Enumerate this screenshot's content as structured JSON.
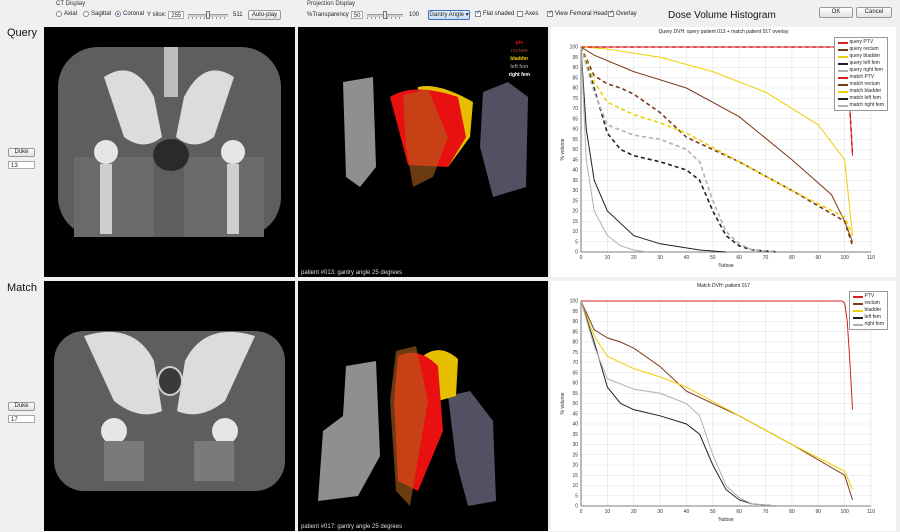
{
  "ct_display": {
    "title": "CT Display",
    "views": [
      "Axial",
      "Sagittal",
      "Coronal"
    ],
    "selected_view": "Coronal",
    "slice_label": "Y slice:",
    "slice_value": "255",
    "slice_max": "511",
    "slice_fraction": 0.5,
    "autoplay_label": "Auto-play"
  },
  "projection_display": {
    "title": "Projection Display",
    "transparency_label": "%Transparency",
    "transparency_value": "50",
    "transparency_max": "100",
    "transparency_fraction": 0.5,
    "gantry_label": "Gantry Angle",
    "flat_shaded_label": "Flat shaded",
    "flat_shaded": true,
    "axes_label": "Axes",
    "axes": false,
    "femoral_label": "View Femoral Heads",
    "femoral": true,
    "overlay_label": "Overlay",
    "overlay": true
  },
  "dvh_title": "Dose Volume Histogram",
  "ok_label": "OK",
  "cancel_label": "Cancel",
  "query": {
    "label": "Query",
    "duke_label": "Duke",
    "patient_number": "13",
    "projection_caption": "patient #013: gantry angle 25 degrees",
    "overlay_legend": [
      {
        "label": "ptv",
        "color": "#e01010"
      },
      {
        "label": "rectum",
        "color": "#7a3a1a"
      },
      {
        "label": "bladder",
        "color": "#f0d000"
      },
      {
        "label": "left fem",
        "color": "#8a8a8a"
      },
      {
        "label": "right fem",
        "color": "#ffffff"
      }
    ]
  },
  "match": {
    "label": "Match",
    "duke_label": "Duke",
    "patient_number": "17",
    "projection_caption": "patient #017: gantry angle 25 degrees"
  },
  "chart_data": [
    {
      "type": "line",
      "title": "Query DVH: query patient 013 + match patient 017 overlay",
      "xlabel": "%dose",
      "ylabel": "% volume",
      "xlim": [
        0,
        110
      ],
      "ylim": [
        0,
        100
      ],
      "xticks": [
        0,
        10,
        20,
        30,
        40,
        50,
        60,
        70,
        80,
        90,
        100,
        110
      ],
      "yticks": [
        0,
        5,
        10,
        15,
        20,
        25,
        30,
        35,
        40,
        45,
        50,
        55,
        60,
        65,
        70,
        75,
        80,
        85,
        90,
        95,
        100
      ],
      "grid": true,
      "legend_position": "top-right",
      "series": [
        {
          "name": "query PTV",
          "color": "#d62020",
          "dashed": false,
          "x": [
            0,
            99,
            100,
            101,
            102,
            103
          ],
          "y": [
            100,
            100,
            99,
            90,
            70,
            47
          ]
        },
        {
          "name": "query rectum",
          "color": "#7a3a1a",
          "dashed": false,
          "x": [
            0,
            5,
            20,
            40,
            60,
            80,
            95,
            100,
            103
          ],
          "y": [
            100,
            96,
            88,
            80,
            66,
            45,
            28,
            15,
            5
          ]
        },
        {
          "name": "query bladder",
          "color": "#f0d000",
          "dashed": false,
          "x": [
            0,
            10,
            30,
            50,
            70,
            90,
            100,
            103
          ],
          "y": [
            100,
            99,
            95,
            88,
            78,
            62,
            45,
            8
          ]
        },
        {
          "name": "query left fem",
          "color": "#202030",
          "dashed": false,
          "x": [
            0,
            2,
            5,
            10,
            20,
            30,
            45,
            55
          ],
          "y": [
            100,
            60,
            35,
            20,
            8,
            4,
            1,
            0
          ]
        },
        {
          "name": "query right fem",
          "color": "#b0b0b0",
          "dashed": false,
          "x": [
            0,
            2,
            5,
            10,
            15,
            20,
            25
          ],
          "y": [
            100,
            45,
            20,
            8,
            3,
            1,
            0
          ]
        },
        {
          "name": "match PTV",
          "color": "#d62020",
          "dashed": true,
          "x": [
            0,
            99,
            100,
            101,
            102,
            103
          ],
          "y": [
            100,
            100,
            99,
            90,
            70,
            47
          ]
        },
        {
          "name": "match rectum",
          "color": "#7a3a1a",
          "dashed": true,
          "x": [
            0,
            5,
            10,
            15,
            20,
            30,
            40,
            60,
            80,
            100,
            103
          ],
          "y": [
            100,
            86,
            82,
            80,
            77,
            68,
            56,
            44,
            30,
            15,
            3
          ]
        },
        {
          "name": "match bladder",
          "color": "#f0d000",
          "dashed": true,
          "x": [
            0,
            5,
            10,
            20,
            30,
            40,
            60,
            80,
            100,
            103
          ],
          "y": [
            100,
            83,
            73,
            67,
            63,
            58,
            44,
            30,
            17,
            8
          ]
        },
        {
          "name": "match left fem",
          "color": "#202030",
          "dashed": true,
          "x": [
            0,
            5,
            10,
            15,
            20,
            30,
            40,
            45,
            50,
            55,
            60,
            65,
            70,
            75
          ],
          "y": [
            100,
            80,
            58,
            50,
            47,
            44,
            40,
            35,
            20,
            8,
            3,
            1,
            0.5,
            0
          ]
        },
        {
          "name": "match right fem",
          "color": "#b0b0b0",
          "dashed": true,
          "x": [
            0,
            5,
            10,
            20,
            30,
            40,
            45,
            50,
            55,
            60,
            65,
            70,
            75
          ],
          "y": [
            100,
            78,
            62,
            57,
            55,
            50,
            44,
            25,
            10,
            4,
            1,
            0.5,
            0
          ]
        }
      ]
    },
    {
      "type": "line",
      "title": "Match DVH: patient 017",
      "xlabel": "%dose",
      "ylabel": "% volume",
      "xlim": [
        0,
        110
      ],
      "ylim": [
        0,
        100
      ],
      "xticks": [
        0,
        10,
        20,
        30,
        40,
        50,
        60,
        70,
        80,
        90,
        100,
        110
      ],
      "yticks": [
        0,
        5,
        10,
        15,
        20,
        25,
        30,
        35,
        40,
        45,
        50,
        55,
        60,
        65,
        70,
        75,
        80,
        85,
        90,
        95,
        100
      ],
      "grid": true,
      "legend_position": "top-right",
      "series": [
        {
          "name": "PTV",
          "color": "#d62020",
          "dashed": false,
          "x": [
            0,
            99,
            100,
            101,
            102,
            103
          ],
          "y": [
            100,
            100,
            99,
            90,
            70,
            47
          ]
        },
        {
          "name": "rectum",
          "color": "#7a3a1a",
          "dashed": false,
          "x": [
            0,
            5,
            10,
            15,
            20,
            30,
            40,
            60,
            80,
            100,
            103
          ],
          "y": [
            100,
            86,
            82,
            80,
            77,
            68,
            56,
            44,
            30,
            15,
            3
          ]
        },
        {
          "name": "bladder",
          "color": "#f0d000",
          "dashed": false,
          "x": [
            0,
            5,
            10,
            20,
            30,
            40,
            60,
            80,
            100,
            103
          ],
          "y": [
            100,
            83,
            73,
            67,
            63,
            58,
            44,
            30,
            17,
            8
          ]
        },
        {
          "name": "left fem",
          "color": "#202030",
          "dashed": false,
          "x": [
            0,
            5,
            10,
            15,
            20,
            30,
            40,
            45,
            50,
            55,
            60,
            65,
            70,
            75
          ],
          "y": [
            100,
            80,
            58,
            50,
            47,
            44,
            40,
            35,
            20,
            8,
            3,
            1,
            0.5,
            0
          ]
        },
        {
          "name": "right fem",
          "color": "#b0b0b0",
          "dashed": false,
          "x": [
            0,
            5,
            10,
            20,
            30,
            40,
            45,
            50,
            55,
            60,
            65,
            70,
            75
          ],
          "y": [
            100,
            78,
            62,
            57,
            55,
            50,
            44,
            25,
            10,
            4,
            1,
            0.5,
            0
          ]
        }
      ]
    }
  ]
}
